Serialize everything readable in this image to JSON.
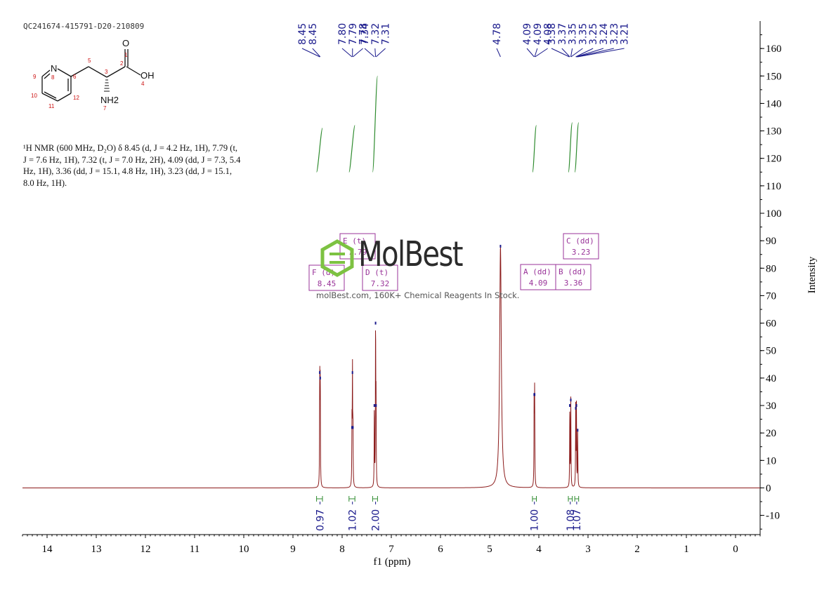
{
  "sample_id": "QC241674-415791-D20-210809",
  "structure": {
    "atom_labels": [
      "N",
      "O",
      "OH",
      "NH2"
    ],
    "atom_numbers": [
      "1",
      "2",
      "3",
      "4",
      "5",
      "6",
      "7",
      "8",
      "9",
      "10",
      "11",
      "12"
    ]
  },
  "nmr_description": {
    "line1": "¹H NMR (600 MHz, D₂O) δ 8.45 (d, J = 4.2 Hz, 1H), 7.79 (t,",
    "line2": "J = 7.6 Hz, 1H), 7.32 (t, J = 7.0 Hz, 2H), 4.09 (dd, J = 7.3, 5.4",
    "line3": "Hz, 1H), 3.36 (dd, J = 15.1, 4.8 Hz, 1H), 3.23 (dd, J = 15.1,",
    "line4": "8.0 Hz, 1H)."
  },
  "watermark": {
    "name": "MolBest",
    "text": "molBest.com, 160K+ Chemical Reagents In Stock."
  },
  "colors": {
    "spectrum": "#8b1a1a",
    "integral": "#2e8b2e",
    "peak_label": "#1a1a8c",
    "multiplet_box": "#993399",
    "axis": "#000000"
  },
  "chart_data": {
    "type": "line",
    "xlabel": "f1 (ppm)",
    "ylabel": "Intensity",
    "xlim": [
      14.5,
      -0.5
    ],
    "ylim": [
      -17,
      170
    ],
    "x_ticks": [
      14,
      13,
      12,
      11,
      10,
      9,
      8,
      7,
      6,
      5,
      4,
      3,
      2,
      1,
      0
    ],
    "y_ticks": [
      -10,
      0,
      10,
      20,
      30,
      40,
      50,
      60,
      70,
      80,
      90,
      100,
      110,
      120,
      130,
      140,
      150,
      160
    ],
    "peaks": [
      {
        "ppm": 8.455,
        "height": 42
      },
      {
        "ppm": 8.445,
        "height": 40
      },
      {
        "ppm": 7.8,
        "height": 22
      },
      {
        "ppm": 7.79,
        "height": 42
      },
      {
        "ppm": 7.78,
        "height": 22
      },
      {
        "ppm": 7.345,
        "height": 30
      },
      {
        "ppm": 7.32,
        "height": 60
      },
      {
        "ppm": 7.31,
        "height": 30
      },
      {
        "ppm": 4.78,
        "height": 88
      },
      {
        "ppm": 4.095,
        "height": 34
      },
      {
        "ppm": 4.085,
        "height": 34
      },
      {
        "ppm": 3.37,
        "height": 30
      },
      {
        "ppm": 3.35,
        "height": 32
      },
      {
        "ppm": 3.25,
        "height": 29
      },
      {
        "ppm": 3.235,
        "height": 30
      },
      {
        "ppm": 3.21,
        "height": 21
      }
    ],
    "peak_labels": [
      {
        "text": "8.45",
        "ppm": 8.455
      },
      {
        "text": "8.45",
        "ppm": 8.445
      },
      {
        "text": "7.80",
        "ppm": 7.8
      },
      {
        "text": "7.79",
        "ppm": 7.79
      },
      {
        "text": "7.78",
        "ppm": 7.78
      },
      {
        "text": "7.34",
        "ppm": 7.345
      },
      {
        "text": "7.32",
        "ppm": 7.32
      },
      {
        "text": "7.31",
        "ppm": 7.31
      },
      {
        "text": "4.78",
        "ppm": 4.78
      },
      {
        "text": "4.09",
        "ppm": 4.095
      },
      {
        "text": "4.09",
        "ppm": 4.085
      },
      {
        "text": "4.08",
        "ppm": 4.075
      },
      {
        "text": "3.38",
        "ppm": 3.38
      },
      {
        "text": "3.37",
        "ppm": 3.37
      },
      {
        "text": "3.35",
        "ppm": 3.35
      },
      {
        "text": "3.35",
        "ppm": 3.345
      },
      {
        "text": "3.25",
        "ppm": 3.25
      },
      {
        "text": "3.24",
        "ppm": 3.24
      },
      {
        "text": "3.23",
        "ppm": 3.23
      },
      {
        "text": "3.21",
        "ppm": 3.21
      }
    ],
    "integrals": [
      {
        "ppm": 8.45,
        "value": "0.97",
        "from": 8.52,
        "to": 8.4,
        "curve_top": 131
      },
      {
        "ppm": 7.79,
        "value": "1.02",
        "from": 7.86,
        "to": 7.74,
        "curve_top": 132
      },
      {
        "ppm": 7.32,
        "value": "2.00",
        "from": 7.38,
        "to": 7.28,
        "curve_top": 150
      },
      {
        "ppm": 4.09,
        "value": "1.00",
        "from": 4.13,
        "to": 4.05,
        "curve_top": 132
      },
      {
        "ppm": 3.36,
        "value": "1.08",
        "from": 3.4,
        "to": 3.32,
        "curve_top": 133
      },
      {
        "ppm": 3.23,
        "value": "1.07",
        "from": 3.27,
        "to": 3.19,
        "curve_top": 133
      }
    ],
    "multiplets": [
      {
        "letter": "F",
        "mult": "(d)",
        "shift": "8.45"
      },
      {
        "letter": "E",
        "mult": "(t)",
        "shift": "7.79"
      },
      {
        "letter": "D",
        "mult": "(t)",
        "shift": "7.32"
      },
      {
        "letter": "A",
        "mult": "(dd)",
        "shift": "4.09"
      },
      {
        "letter": "B",
        "mult": "(dd)",
        "shift": "3.36"
      },
      {
        "letter": "C",
        "mult": "(dd)",
        "shift": "3.23"
      }
    ]
  }
}
